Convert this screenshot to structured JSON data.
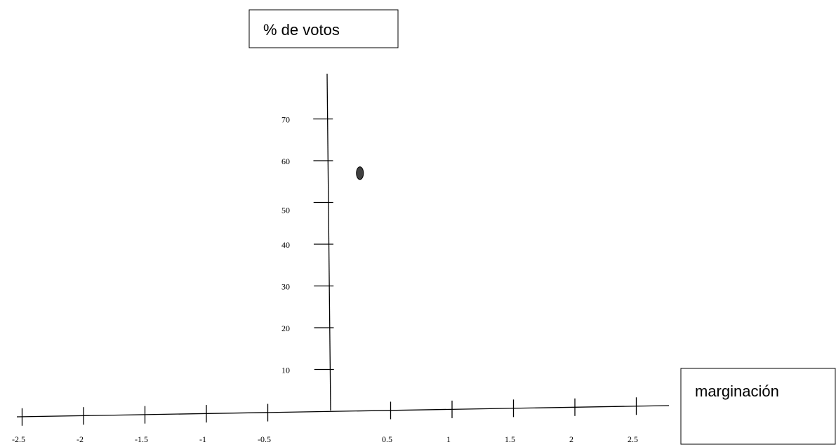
{
  "chart_data": {
    "type": "scatter",
    "ylabel": "% de votos",
    "xlabel": "marginación",
    "x_ticks": [
      -2.5,
      -2,
      -1.5,
      -1,
      -0.5,
      0.5,
      1,
      1.5,
      2,
      2.5
    ],
    "x_tick_labels": [
      "-2.5",
      "-2",
      "-1.5",
      "-1",
      "-0.5",
      "0.5",
      "1",
      "1.5",
      "2",
      "2.5"
    ],
    "y_ticks": [
      10,
      20,
      30,
      40,
      50,
      60,
      70
    ],
    "y_tick_labels": [
      "10",
      "20",
      "30",
      "40",
      "50",
      "60",
      "70"
    ],
    "xlim": [
      -2.5,
      2.7
    ],
    "ylim": [
      0,
      78
    ],
    "points": [
      {
        "x": 0.25,
        "y": 55
      }
    ],
    "marker_color": "#404040",
    "grid": false
  }
}
